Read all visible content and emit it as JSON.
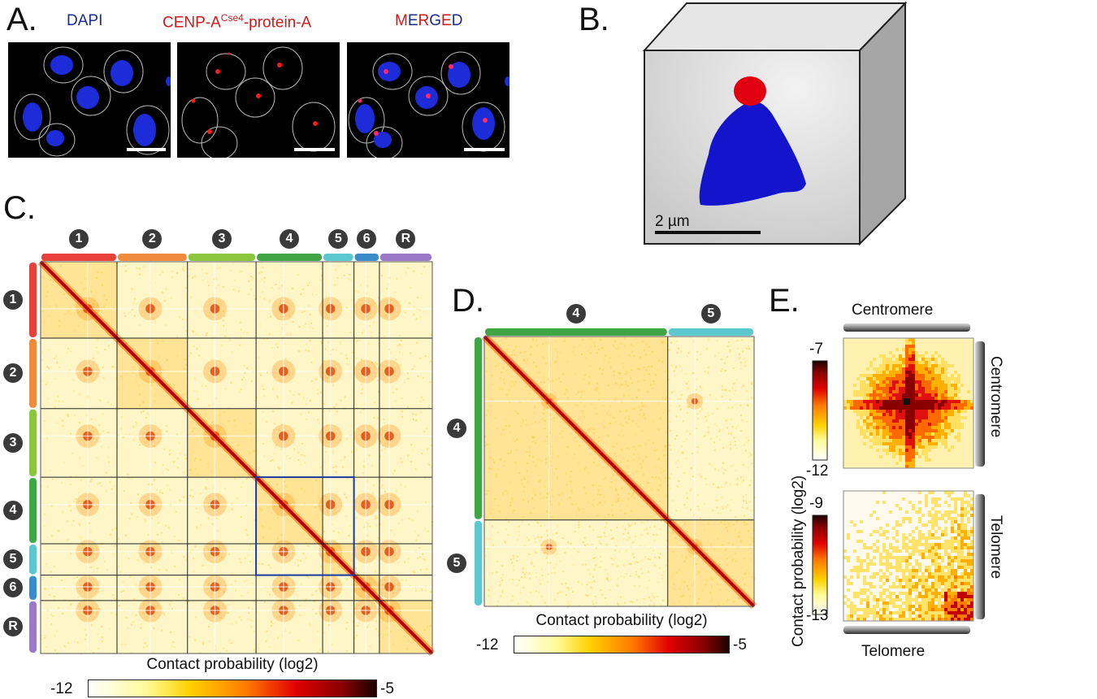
{
  "panels": {
    "a": "A.",
    "b": "B.",
    "c": "C.",
    "d": "D.",
    "e": "E."
  },
  "panel_a": {
    "dapi": "DAPI",
    "cenp_prefix": "CENP-A",
    "cenp_sup": "Cse4",
    "cenp_suffix": "-protein-A",
    "merged_letters": [
      "M",
      "E",
      "R",
      "G",
      "E",
      "D"
    ],
    "merged_colors": [
      "#d01919",
      "#1a2d8c",
      "#d01919",
      "#1a2d8c",
      "#d01919",
      "#1a2d8c"
    ],
    "dapi_color": "#1a2d8c",
    "cenp_color": "#d01919"
  },
  "panel_b": {
    "scale_label": "2 µm"
  },
  "panel_c": {
    "chromosomes": [
      "1",
      "2",
      "3",
      "4",
      "5",
      "6",
      "R"
    ],
    "chrom_colors": [
      "#e8403a",
      "#f08a3c",
      "#8cc63f",
      "#3fa545",
      "#5bc8d0",
      "#3a8cc8",
      "#9b79c8"
    ],
    "colorbar_min": "-12",
    "colorbar_max": "-5",
    "colorbar_label": "Contact probability (log2)"
  },
  "panel_d": {
    "chromosomes": [
      "4",
      "5"
    ],
    "colorbar_min": "-12",
    "colorbar_max": "-5",
    "colorbar_label": "Contact probability (log2)"
  },
  "panel_e": {
    "top_label": "Centromere",
    "right_top_label": "Centromere",
    "right_bottom_label": "Telomere",
    "bottom_label": "Telomere",
    "ylabel": "Contact probability (log2)",
    "top_cb_max": "-7",
    "top_cb_min": "-12",
    "bottom_cb_max": "-9",
    "bottom_cb_min": "-13"
  }
}
